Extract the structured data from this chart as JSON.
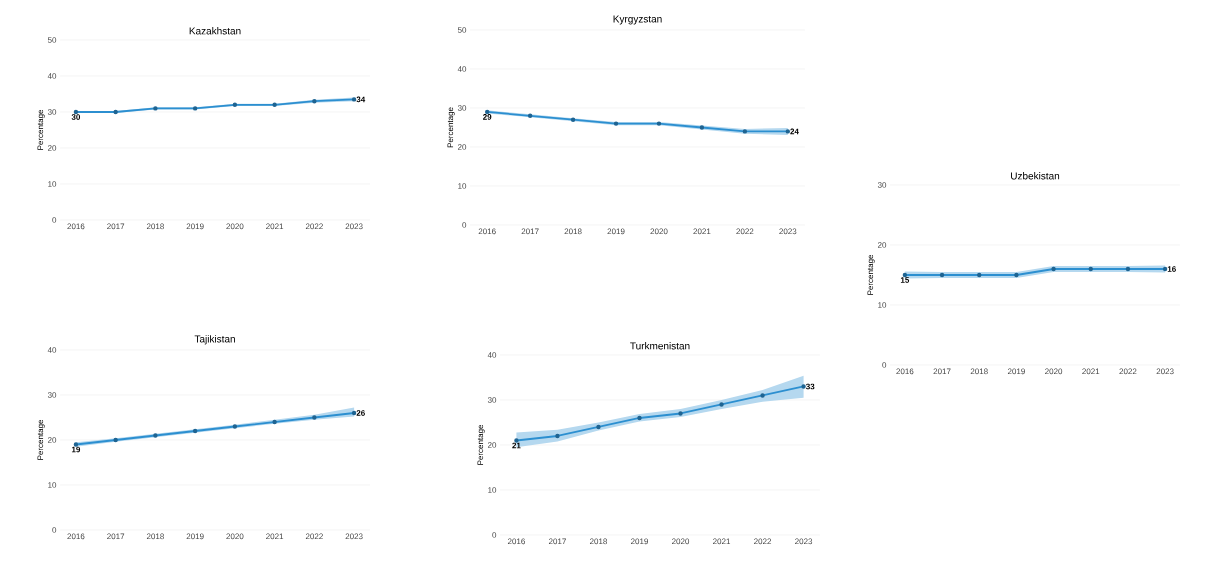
{
  "chart_data": [
    {
      "type": "line",
      "title": "Kazakhstan",
      "ylabel": "Percentage",
      "categories": [
        "2016",
        "2017",
        "2018",
        "2019",
        "2020",
        "2021",
        "2022",
        "2023"
      ],
      "ylim": [
        0,
        50
      ],
      "yticks": [
        0,
        10,
        20,
        30,
        40,
        50
      ],
      "grid": "y",
      "marker": "circle",
      "series": [
        {
          "color": "#2c8fd0",
          "values": [
            30,
            30,
            31,
            31,
            32,
            32,
            33,
            33.5
          ],
          "lower": [
            29.7,
            29.7,
            30.7,
            30.7,
            31.7,
            31.7,
            32.6,
            33.0
          ],
          "upper": [
            30.3,
            30.3,
            31.3,
            31.3,
            32.3,
            32.3,
            33.4,
            34.0
          ],
          "value_labels": [
            "30",
            null,
            null,
            null,
            null,
            null,
            null,
            "34"
          ]
        }
      ]
    },
    {
      "type": "line",
      "title": "Kyrgyzstan",
      "ylabel": "Percentage",
      "categories": [
        "2016",
        "2017",
        "2018",
        "2019",
        "2020",
        "2021",
        "2022",
        "2023"
      ],
      "ylim": [
        0,
        50
      ],
      "yticks": [
        0,
        10,
        20,
        30,
        40,
        50
      ],
      "grid": "y",
      "marker": "circle",
      "series": [
        {
          "color": "#2c8fd0",
          "values": [
            29,
            28,
            27,
            26,
            26,
            25,
            24,
            24
          ],
          "lower": [
            28.6,
            27.6,
            26.6,
            25.6,
            25.6,
            24.5,
            23.4,
            23.1
          ],
          "upper": [
            29.4,
            28.4,
            27.4,
            26.4,
            26.4,
            25.5,
            24.6,
            24.9
          ],
          "value_labels": [
            "29",
            null,
            null,
            null,
            null,
            null,
            null,
            "24"
          ]
        }
      ]
    },
    {
      "type": "line",
      "title": "Uzbekistan",
      "ylabel": "Percentage",
      "categories": [
        "2016",
        "2017",
        "2018",
        "2019",
        "2020",
        "2021",
        "2022",
        "2023"
      ],
      "ylim": [
        0,
        30
      ],
      "yticks": [
        0,
        10,
        20,
        30
      ],
      "grid": "y",
      "marker": "circle",
      "series": [
        {
          "color": "#2c8fd0",
          "values": [
            15,
            15,
            15,
            15,
            16,
            16,
            16,
            16
          ],
          "lower": [
            14.4,
            14.5,
            14.5,
            14.5,
            15.5,
            15.5,
            15.5,
            15.4
          ],
          "upper": [
            15.6,
            15.5,
            15.5,
            15.5,
            16.5,
            16.5,
            16.5,
            16.6
          ],
          "value_labels": [
            "15",
            null,
            null,
            null,
            null,
            null,
            null,
            "16"
          ]
        }
      ]
    },
    {
      "type": "line",
      "title": "Tajikistan",
      "ylabel": "Percentage",
      "categories": [
        "2016",
        "2017",
        "2018",
        "2019",
        "2020",
        "2021",
        "2022",
        "2023"
      ],
      "ylim": [
        0,
        40
      ],
      "yticks": [
        0,
        10,
        20,
        30,
        40
      ],
      "grid": "y",
      "marker": "circle",
      "series": [
        {
          "color": "#2c8fd0",
          "values": [
            19,
            20,
            21,
            22,
            23,
            24,
            25,
            26
          ],
          "lower": [
            18.5,
            19.6,
            20.6,
            21.6,
            22.6,
            23.6,
            24.5,
            25.2
          ],
          "upper": [
            19.5,
            20.4,
            21.4,
            22.4,
            23.4,
            24.5,
            25.6,
            27.2
          ],
          "value_labels": [
            "19",
            null,
            null,
            null,
            null,
            null,
            null,
            "26"
          ]
        }
      ]
    },
    {
      "type": "line",
      "title": "Turkmenistan",
      "ylabel": "Percentage",
      "categories": [
        "2016",
        "2017",
        "2018",
        "2019",
        "2020",
        "2021",
        "2022",
        "2023"
      ],
      "ylim": [
        0,
        40
      ],
      "yticks": [
        0,
        10,
        20,
        30,
        40
      ],
      "grid": "y",
      "marker": "circle",
      "series": [
        {
          "color": "#2c8fd0",
          "values": [
            21,
            22,
            24,
            26,
            27,
            29,
            31,
            33
          ],
          "lower": [
            19.5,
            20.8,
            23.2,
            25.2,
            26.2,
            28.0,
            29.6,
            30.5
          ],
          "upper": [
            22.8,
            23.4,
            25.0,
            26.9,
            28.0,
            30.0,
            32.2,
            35.4
          ],
          "value_labels": [
            "21",
            null,
            null,
            null,
            null,
            null,
            null,
            "33"
          ]
        }
      ]
    }
  ]
}
